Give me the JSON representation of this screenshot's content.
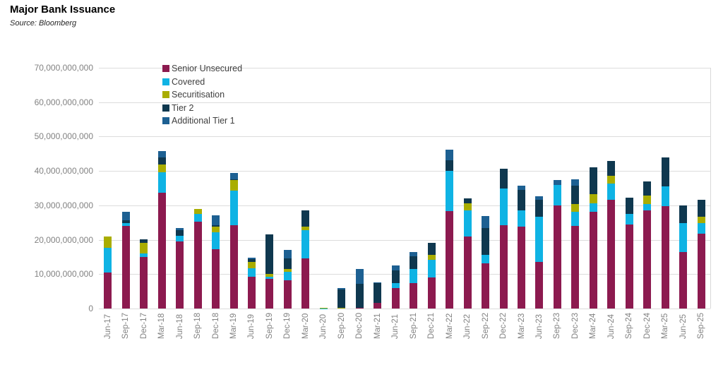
{
  "header": {
    "title": "Major Bank Issuance",
    "source": "Source: Bloomberg"
  },
  "colors": {
    "senior_unsecured": "#8C1A4F",
    "covered": "#0FB3E4",
    "securitisation": "#A9AD00",
    "tier_2": "#0F384F",
    "additional_tier_1": "#1D6092",
    "gridline": "#DCDCDC",
    "axis_text": "#828282",
    "legend_text": "#3F3F3F"
  },
  "chart_data": {
    "type": "bar",
    "subtype": "stacked-column",
    "title": "Major Bank Issuance",
    "source": "Source: Bloomberg",
    "xlabel": "",
    "ylabel": "",
    "ylim": [
      0,
      70000000000
    ],
    "y_tick_step": 10000000000,
    "y_tick_labels": [
      "0",
      "10,000,000,000",
      "20,000,000,000",
      "30,000,000,000",
      "40,000,000,000",
      "50,000,000,000",
      "60,000,000,000",
      "70,000,000,000"
    ],
    "grid": "horizontal",
    "legend_position": "top-left-inside",
    "values_unit": "billions",
    "categories": [
      "Jun-17",
      "Sep-17",
      "Dec-17",
      "Mar-18",
      "Jun-18",
      "Sep-18",
      "Dec-18",
      "Mar-19",
      "Jun-19",
      "Sep-19",
      "Dec-19",
      "Mar-20",
      "Jun-20",
      "Sep-20",
      "Dec-20",
      "Mar-21",
      "Jun-21",
      "Sep-21",
      "Dec-21",
      "Mar-22",
      "Jun-22",
      "Sep-22",
      "Dec-22",
      "Mar-23",
      "Jun-23",
      "Sep-23",
      "Dec-23",
      "Mar-24",
      "Jun-24",
      "Sep-24",
      "Dec-24",
      "Mar-25",
      "Jun-25",
      "Sep-25"
    ],
    "series": [
      {
        "name": "Senior Unsecured",
        "color": "#8C1A4F",
        "values_bn": [
          10.4,
          24.0,
          15.0,
          33.6,
          19.6,
          25.3,
          17.2,
          24.3,
          9.2,
          8.6,
          8.3,
          14.6,
          0,
          0,
          0.3,
          1.6,
          5.9,
          7.4,
          9.1,
          28.3,
          20.9,
          13.1,
          24.3,
          23.9,
          13.6,
          30.0,
          24.1,
          28.2,
          31.7,
          24.4,
          28.5,
          29.7,
          16.4,
          21.7
        ]
      },
      {
        "name": "Covered",
        "color": "#0FB3E4",
        "values_bn": [
          7.3,
          0.8,
          1.0,
          6.1,
          1.6,
          2.2,
          4.9,
          9.9,
          2.6,
          0.6,
          2.3,
          8.2,
          0.1,
          0,
          0,
          0,
          1.5,
          4.0,
          5.0,
          11.7,
          7.6,
          2.6,
          10.5,
          4.6,
          13.0,
          6.0,
          4.1,
          2.4,
          4.7,
          3.1,
          1.8,
          5.9,
          8.5,
          3.2
        ]
      },
      {
        "name": "Securitisation",
        "color": "#A9AD00",
        "values_bn": [
          3.2,
          0,
          3.0,
          2.1,
          0,
          1.5,
          1.8,
          3.1,
          1.7,
          0.9,
          1.0,
          1.0,
          0.1,
          0.3,
          0,
          0,
          0,
          0,
          1.6,
          0,
          2.0,
          0,
          0,
          0,
          0,
          0,
          2.2,
          2.7,
          2.2,
          0,
          2.5,
          0,
          0,
          1.8
        ]
      },
      {
        "name": "Tier 2",
        "color": "#0F384F",
        "values_bn": [
          0,
          0.9,
          1.1,
          2.2,
          1.5,
          0,
          0.4,
          0.3,
          0.9,
          11.4,
          3.0,
          4.7,
          0,
          5.2,
          6.8,
          5.8,
          3.7,
          3.8,
          3.4,
          3.2,
          1.6,
          7.8,
          5.9,
          6.0,
          5.0,
          0,
          5.4,
          7.7,
          4.4,
          4.8,
          4.2,
          8.4,
          5.1,
          4.9
        ]
      },
      {
        "name": "Additional Tier 1",
        "color": "#1D6092",
        "values_bn": [
          0,
          2.5,
          0,
          1.8,
          0.7,
          0,
          2.9,
          1.9,
          0.4,
          0,
          2.4,
          0,
          0,
          0.4,
          4.4,
          0.3,
          1.4,
          1.2,
          0,
          3.0,
          0,
          3.4,
          0,
          1.2,
          1.1,
          1.3,
          1.7,
          0,
          0,
          0,
          0,
          0,
          0,
          0
        ]
      }
    ]
  }
}
